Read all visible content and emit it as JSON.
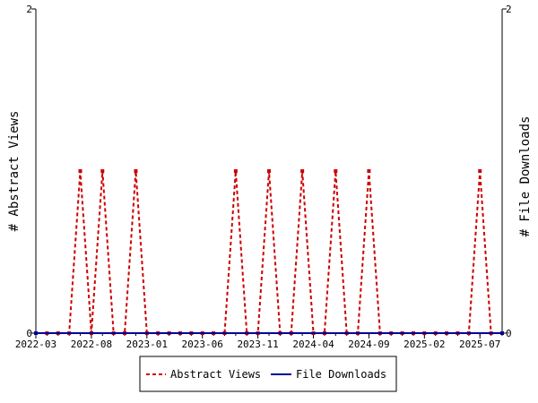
{
  "chart_data": {
    "type": "line",
    "title": "",
    "xlabel": "",
    "ylabel_left": "# Abstract Views",
    "ylabel_right": "# File Downloads",
    "ylim_left": [
      0,
      2
    ],
    "ylim_right": [
      0,
      2
    ],
    "y_ticks_left": [
      "0",
      "2"
    ],
    "y_ticks_right": [
      "0",
      "2"
    ],
    "x_tick_labels": [
      "2022-03",
      "2022-08",
      "2023-01",
      "2023-06",
      "2023-11",
      "2024-04",
      "2024-09",
      "2025-02",
      "2025-07"
    ],
    "x_start": "2022-03",
    "x_end": "2025-09",
    "grid": false,
    "legend_position": "bottom",
    "series": [
      {
        "name": "Abstract Views",
        "color": "#cc0000",
        "style": "dashed",
        "axis": "left",
        "x": [
          "2022-03",
          "2022-04",
          "2022-05",
          "2022-06",
          "2022-07",
          "2022-08",
          "2022-09",
          "2022-10",
          "2022-11",
          "2022-12",
          "2023-01",
          "2023-02",
          "2023-03",
          "2023-04",
          "2023-05",
          "2023-06",
          "2023-07",
          "2023-08",
          "2023-09",
          "2023-10",
          "2023-11",
          "2023-12",
          "2024-01",
          "2024-02",
          "2024-03",
          "2024-04",
          "2024-05",
          "2024-06",
          "2024-07",
          "2024-08",
          "2024-09",
          "2024-10",
          "2024-11",
          "2024-12",
          "2025-01",
          "2025-02",
          "2025-03",
          "2025-04",
          "2025-05",
          "2025-06",
          "2025-07",
          "2025-08",
          "2025-09"
        ],
        "values": [
          0,
          0,
          0,
          0,
          1,
          0,
          1,
          0,
          0,
          1,
          0,
          0,
          0,
          0,
          0,
          0,
          0,
          0,
          1,
          0,
          0,
          1,
          0,
          0,
          1,
          0,
          0,
          1,
          0,
          0,
          1,
          0,
          0,
          0,
          0,
          0,
          0,
          0,
          0,
          0,
          1,
          0,
          0
        ]
      },
      {
        "name": "File Downloads",
        "color": "#000099",
        "style": "solid",
        "axis": "right",
        "x": [
          "2022-03",
          "2025-09"
        ],
        "values": [
          0,
          0
        ]
      }
    ]
  }
}
